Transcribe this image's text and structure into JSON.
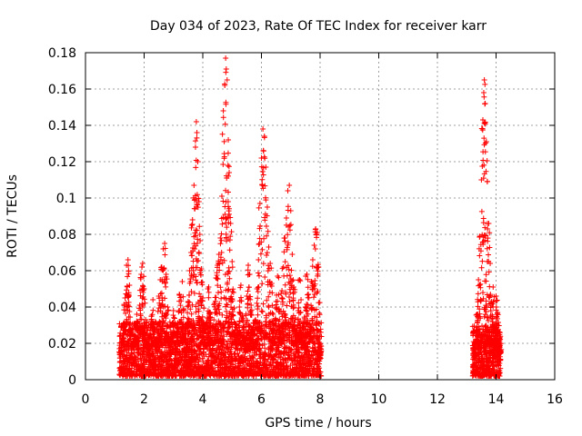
{
  "chart_data": {
    "type": "scatter",
    "title": "Day 034 of 2023, Rate Of TEC Index for receiver karr",
    "xlabel": "GPS time / hours",
    "ylabel": "ROTI / TECUs",
    "xlim": [
      0,
      16
    ],
    "ylim": [
      0,
      0.18
    ],
    "xticks": [
      0,
      2,
      4,
      6,
      8,
      10,
      12,
      14,
      16
    ],
    "yticks": [
      0,
      0.02,
      0.04,
      0.06,
      0.08,
      0.1,
      0.12,
      0.14,
      0.16,
      0.18
    ],
    "ytick_labels": [
      "0",
      "0.02",
      "0.04",
      "0.06",
      "0.08",
      "0.1",
      "0.12",
      "0.14",
      "0.16",
      "0.18"
    ],
    "grid": true,
    "marker": "+",
    "color": "#ff0000",
    "series": [
      {
        "name": "ROTI",
        "points": [
          [
            1.2,
            0.013
          ],
          [
            1.25,
            0.022
          ],
          [
            1.3,
            0.031
          ],
          [
            1.35,
            0.045
          ],
          [
            1.4,
            0.063
          ],
          [
            1.45,
            0.066
          ],
          [
            1.5,
            0.052
          ],
          [
            1.55,
            0.028
          ],
          [
            1.6,
            0.018
          ],
          [
            1.65,
            0.009
          ],
          [
            1.7,
            0.024
          ],
          [
            1.75,
            0.036
          ],
          [
            1.8,
            0.015
          ],
          [
            1.85,
            0.041
          ],
          [
            1.9,
            0.058
          ],
          [
            1.95,
            0.064
          ],
          [
            2.0,
            0.05
          ],
          [
            2.05,
            0.033
          ],
          [
            2.1,
            0.019
          ],
          [
            2.15,
            0.012
          ],
          [
            2.2,
            0.027
          ],
          [
            2.25,
            0.035
          ],
          [
            2.3,
            0.044
          ],
          [
            2.35,
            0.021
          ],
          [
            2.4,
            0.016
          ],
          [
            2.45,
            0.03
          ],
          [
            2.5,
            0.046
          ],
          [
            2.55,
            0.055
          ],
          [
            2.6,
            0.062
          ],
          [
            2.65,
            0.072
          ],
          [
            2.7,
            0.075
          ],
          [
            2.75,
            0.058
          ],
          [
            2.8,
            0.04
          ],
          [
            2.85,
            0.023
          ],
          [
            2.9,
            0.014
          ],
          [
            2.95,
            0.026
          ],
          [
            3.0,
            0.038
          ],
          [
            3.05,
            0.02
          ],
          [
            3.1,
            0.011
          ],
          [
            3.15,
            0.029
          ],
          [
            3.2,
            0.047
          ],
          [
            3.25,
            0.032
          ],
          [
            3.3,
            0.054
          ],
          [
            3.35,
            0.039
          ],
          [
            3.4,
            0.025
          ],
          [
            3.45,
            0.017
          ],
          [
            3.5,
            0.043
          ],
          [
            3.55,
            0.06
          ],
          [
            3.6,
            0.07
          ],
          [
            3.65,
            0.088
          ],
          [
            3.7,
            0.107
          ],
          [
            3.75,
            0.128
          ],
          [
            3.78,
            0.142
          ],
          [
            3.8,
            0.136
          ],
          [
            3.83,
            0.12
          ],
          [
            3.87,
            0.098
          ],
          [
            3.9,
            0.08
          ],
          [
            3.95,
            0.061
          ],
          [
            4.0,
            0.045
          ],
          [
            4.05,
            0.03
          ],
          [
            4.1,
            0.018
          ],
          [
            4.15,
            0.034
          ],
          [
            4.2,
            0.051
          ],
          [
            4.25,
            0.037
          ],
          [
            4.3,
            0.022
          ],
          [
            4.35,
            0.013
          ],
          [
            4.4,
            0.042
          ],
          [
            4.45,
            0.056
          ],
          [
            4.5,
            0.063
          ],
          [
            4.55,
            0.069
          ],
          [
            4.6,
            0.078
          ],
          [
            4.65,
            0.101
          ],
          [
            4.7,
            0.148
          ],
          [
            4.75,
            0.162
          ],
          [
            4.78,
            0.177
          ],
          [
            4.8,
            0.171
          ],
          [
            4.83,
            0.165
          ],
          [
            4.87,
            0.132
          ],
          [
            4.9,
            0.114
          ],
          [
            4.95,
            0.086
          ],
          [
            5.0,
            0.065
          ],
          [
            5.05,
            0.048
          ],
          [
            5.1,
            0.031
          ],
          [
            5.15,
            0.019
          ],
          [
            5.2,
            0.027
          ],
          [
            5.25,
            0.04
          ],
          [
            5.3,
            0.052
          ],
          [
            5.35,
            0.035
          ],
          [
            5.4,
            0.024
          ],
          [
            5.45,
            0.015
          ],
          [
            5.5,
            0.046
          ],
          [
            5.55,
            0.063
          ],
          [
            5.6,
            0.058
          ],
          [
            5.65,
            0.041
          ],
          [
            5.7,
            0.028
          ],
          [
            5.75,
            0.017
          ],
          [
            5.8,
            0.033
          ],
          [
            5.85,
            0.05
          ],
          [
            5.9,
            0.066
          ],
          [
            5.95,
            0.097
          ],
          [
            6.0,
            0.122
          ],
          [
            6.05,
            0.138
          ],
          [
            6.1,
            0.134
          ],
          [
            6.15,
            0.117
          ],
          [
            6.2,
            0.095
          ],
          [
            6.25,
            0.073
          ],
          [
            6.3,
            0.064
          ],
          [
            6.35,
            0.053
          ],
          [
            6.4,
            0.036
          ],
          [
            6.45,
            0.021
          ],
          [
            6.5,
            0.043
          ],
          [
            6.55,
            0.057
          ],
          [
            6.6,
            0.039
          ],
          [
            6.65,
            0.026
          ],
          [
            6.7,
            0.049
          ],
          [
            6.75,
            0.062
          ],
          [
            6.8,
            0.078
          ],
          [
            6.85,
            0.089
          ],
          [
            6.9,
            0.104
          ],
          [
            6.95,
            0.107
          ],
          [
            7.0,
            0.093
          ],
          [
            7.05,
            0.069
          ],
          [
            7.1,
            0.051
          ],
          [
            7.15,
            0.034
          ],
          [
            7.2,
            0.022
          ],
          [
            7.25,
            0.038
          ],
          [
            7.3,
            0.055
          ],
          [
            7.35,
            0.044
          ],
          [
            7.4,
            0.029
          ],
          [
            7.45,
            0.018
          ],
          [
            7.5,
            0.04
          ],
          [
            7.55,
            0.058
          ],
          [
            7.6,
            0.047
          ],
          [
            7.65,
            0.031
          ],
          [
            7.7,
            0.054
          ],
          [
            7.75,
            0.066
          ],
          [
            7.8,
            0.074
          ],
          [
            7.85,
            0.083
          ],
          [
            7.9,
            0.081
          ],
          [
            7.95,
            0.062
          ],
          [
            8.0,
            0.012
          ],
          [
            13.25,
            0.008
          ],
          [
            13.3,
            0.021
          ],
          [
            13.35,
            0.036
          ],
          [
            13.4,
            0.055
          ],
          [
            13.45,
            0.079
          ],
          [
            13.5,
            0.11
          ],
          [
            13.55,
            0.143
          ],
          [
            13.58,
            0.158
          ],
          [
            13.6,
            0.165
          ],
          [
            13.63,
            0.152
          ],
          [
            13.67,
            0.131
          ],
          [
            13.7,
            0.109
          ],
          [
            13.75,
            0.086
          ],
          [
            13.8,
            0.064
          ],
          [
            13.85,
            0.043
          ],
          [
            13.9,
            0.051
          ],
          [
            13.95,
            0.028
          ],
          [
            14.0,
            0.046
          ],
          [
            14.05,
            0.037
          ],
          [
            14.1,
            0.018
          ],
          [
            14.15,
            0.011
          ],
          [
            13.28,
            0.012
          ],
          [
            13.42,
            0.017
          ],
          [
            13.52,
            0.024
          ],
          [
            13.62,
            0.015
          ],
          [
            13.72,
            0.027
          ],
          [
            13.82,
            0.019
          ],
          [
            13.92,
            0.014
          ],
          [
            14.02,
            0.022
          ],
          [
            14.12,
            0.009
          ]
        ],
        "band": [
          {
            "x_from": 1.15,
            "x_to": 8.05,
            "y_min": 0.002,
            "y_max": 0.032,
            "count": 2600
          },
          {
            "x_from": 13.2,
            "x_to": 14.15,
            "y_min": 0.002,
            "y_max": 0.03,
            "count": 420
          }
        ]
      }
    ]
  }
}
